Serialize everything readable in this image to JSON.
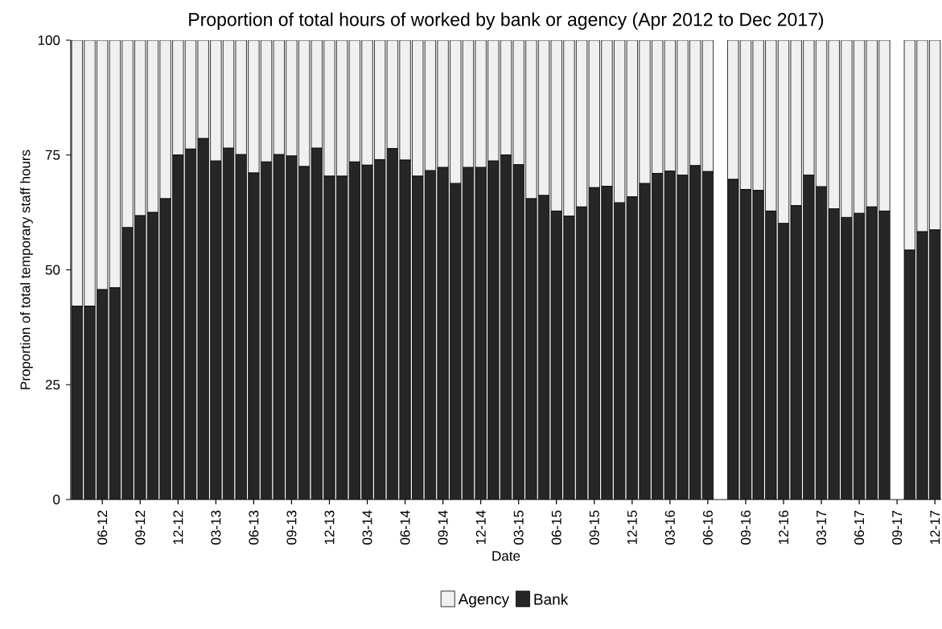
{
  "chart_data": {
    "type": "bar",
    "stacked": true,
    "title": "Proportion of total hours of worked by bank or agency (Apr 2012 to Dec 2017)",
    "xlabel": "Date",
    "ylabel": "Proportion of total temporary staff hours",
    "categories": [
      null,
      null,
      "06-12",
      null,
      null,
      "09-12",
      null,
      null,
      "12-12",
      null,
      null,
      "03-13",
      null,
      null,
      "06-13",
      null,
      null,
      "09-13",
      null,
      null,
      "12-13",
      null,
      null,
      "03-14",
      null,
      null,
      "06-14",
      null,
      null,
      "09-14",
      null,
      null,
      "12-14",
      null,
      null,
      "03-15",
      null,
      null,
      "06-15",
      null,
      null,
      "09-15",
      null,
      null,
      "12-15",
      null,
      null,
      "03-16",
      null,
      null,
      "06-16",
      null,
      null,
      "09-16",
      null,
      null,
      "12-16",
      null,
      null,
      "03-17",
      null,
      null,
      "06-17",
      null,
      null,
      "09-17",
      null,
      null,
      "12-17"
    ],
    "series": [
      {
        "name": "Bank",
        "color": "#262626",
        "values": [
          42.1,
          42.1,
          45.7,
          46.1,
          59.2,
          61.8,
          62.5,
          65.5,
          75.0,
          76.3,
          78.6,
          73.7,
          76.5,
          75.1,
          71.1,
          73.5,
          75.1,
          74.8,
          72.5,
          76.5,
          70.4,
          70.4,
          73.5,
          72.8,
          74.0,
          76.4,
          73.9,
          70.4,
          71.6,
          72.3,
          68.8,
          72.3,
          72.3,
          73.7,
          75.0,
          72.9,
          65.5,
          66.2,
          62.8,
          61.7,
          63.7,
          67.9,
          68.2,
          64.6,
          65.9,
          68.8,
          71.0,
          71.5,
          70.6,
          72.7,
          71.4,
          null,
          69.7,
          67.5,
          67.3,
          62.8,
          60.1,
          64.0,
          70.6,
          68.1,
          63.3,
          61.4,
          62.3,
          63.7,
          62.8,
          null,
          54.3,
          58.3,
          58.7
        ]
      },
      {
        "name": "Agency",
        "color": "#f0f0f0",
        "values": [
          57.9,
          57.9,
          54.3,
          53.9,
          40.8,
          38.2,
          37.5,
          34.5,
          25.0,
          23.7,
          21.4,
          26.3,
          23.5,
          24.9,
          28.9,
          26.5,
          24.9,
          25.2,
          27.5,
          23.5,
          29.6,
          29.6,
          26.5,
          27.2,
          26.0,
          23.6,
          26.1,
          29.6,
          28.4,
          27.7,
          31.2,
          27.7,
          27.7,
          26.3,
          25.0,
          27.1,
          34.5,
          33.8,
          37.2,
          38.3,
          36.3,
          32.1,
          31.8,
          35.4,
          34.1,
          31.2,
          29.0,
          28.5,
          29.4,
          27.3,
          28.6,
          null,
          30.3,
          32.5,
          32.7,
          37.2,
          39.9,
          36.0,
          29.4,
          31.9,
          36.7,
          38.6,
          37.7,
          36.3,
          37.2,
          null,
          45.7,
          41.7,
          41.3
        ]
      }
    ],
    "ylim": [
      0,
      100
    ],
    "yticks": [
      0,
      25,
      50,
      75,
      100
    ],
    "legend": "bottom"
  }
}
